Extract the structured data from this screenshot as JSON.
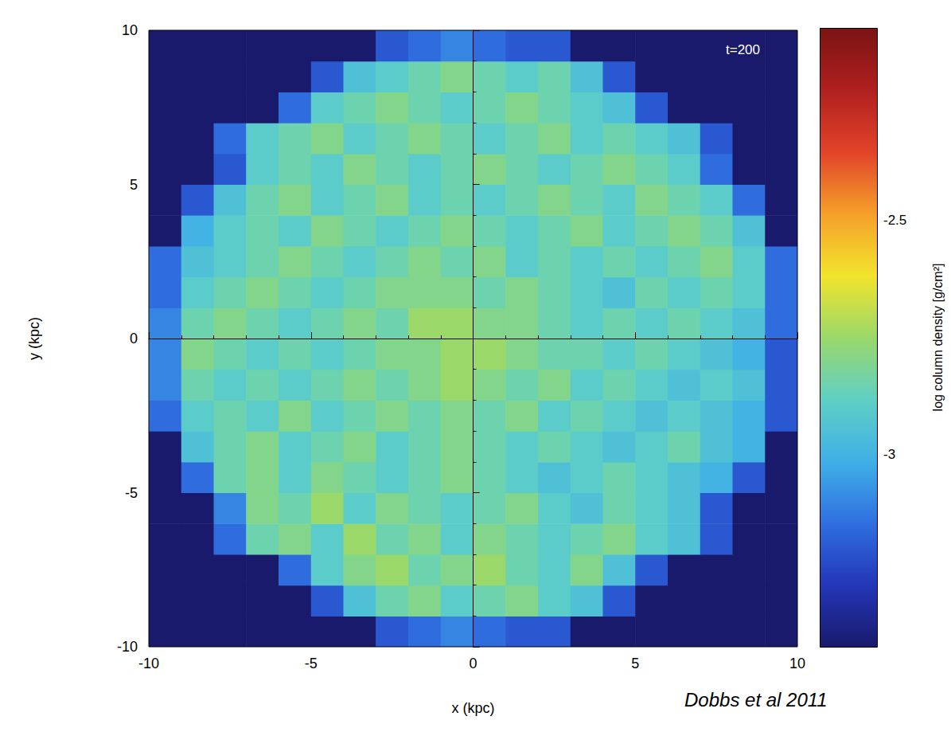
{
  "chart_data": {
    "type": "heatmap",
    "x_label": "x (kpc)",
    "y_label": "y (kpc)",
    "xlim": [
      -10,
      10
    ],
    "ylim": [
      -10,
      10
    ],
    "xticks": [
      -10,
      -5,
      0,
      5,
      10
    ],
    "yticks": [
      -10,
      -5,
      0,
      5,
      10
    ],
    "x_bins": [
      -10,
      -9,
      -8,
      -7,
      -6,
      -5,
      -4,
      -3,
      -2,
      -1,
      0,
      1,
      2,
      3,
      4,
      5,
      6,
      7,
      8,
      9,
      10
    ],
    "y_bins": [
      -10,
      -9,
      -8,
      -7,
      -6,
      -5,
      -4,
      -3,
      -2,
      -1,
      0,
      1,
      2,
      3,
      4,
      5,
      6,
      7,
      8,
      9,
      10
    ],
    "cells": [
      [
        -3.41,
        -3.41,
        -3.41,
        -3.41,
        -3.41,
        -3.41,
        -3.41,
        -3.2,
        -3.15,
        -3.1,
        -3.15,
        -3.2,
        -3.2,
        -3.41,
        -3.41,
        -3.41,
        -3.41,
        -3.41,
        -3.41,
        -3.41
      ],
      [
        -3.41,
        -3.41,
        -3.41,
        -3.41,
        -3.41,
        -3.2,
        -2.95,
        -2.85,
        -2.8,
        -2.9,
        -2.85,
        -2.8,
        -2.9,
        -2.95,
        -3.2,
        -3.41,
        -3.41,
        -3.41,
        -3.41,
        -3.41
      ],
      [
        -3.41,
        -3.41,
        -3.41,
        -3.41,
        -3.15,
        -2.9,
        -2.8,
        -2.75,
        -2.85,
        -2.8,
        -2.75,
        -2.85,
        -2.9,
        -2.8,
        -2.95,
        -3.2,
        -3.41,
        -3.41,
        -3.41,
        -3.41
      ],
      [
        -3.41,
        -3.41,
        -3.15,
        -2.85,
        -2.8,
        -2.9,
        -2.75,
        -2.85,
        -2.8,
        -2.9,
        -2.8,
        -2.85,
        -2.9,
        -2.85,
        -2.8,
        -2.9,
        -2.95,
        -3.2,
        -3.41,
        -3.41
      ],
      [
        -3.41,
        -3.41,
        -3.1,
        -2.8,
        -2.85,
        -2.75,
        -2.9,
        -2.8,
        -2.85,
        -2.9,
        -2.85,
        -2.8,
        -2.9,
        -2.95,
        -2.85,
        -2.9,
        -2.95,
        -3.2,
        -3.41,
        -3.41
      ],
      [
        -3.41,
        -3.15,
        -2.85,
        -2.8,
        -2.9,
        -2.8,
        -2.85,
        -2.9,
        -2.85,
        -2.8,
        -2.85,
        -2.9,
        -2.95,
        -2.9,
        -2.85,
        -2.9,
        -2.95,
        -3.0,
        -3.2,
        -3.41
      ],
      [
        -3.41,
        -2.95,
        -2.85,
        -2.8,
        -2.9,
        -2.85,
        -2.8,
        -2.9,
        -2.85,
        -2.8,
        -2.85,
        -2.9,
        -2.85,
        -2.9,
        -2.95,
        -2.9,
        -2.85,
        -2.95,
        -3.0,
        -3.41
      ],
      [
        -3.15,
        -2.9,
        -2.85,
        -2.9,
        -2.8,
        -2.9,
        -2.85,
        -2.8,
        -2.85,
        -2.8,
        -2.85,
        -2.8,
        -2.9,
        -2.85,
        -2.9,
        -2.95,
        -2.9,
        -2.95,
        -3.0,
        -3.2
      ],
      [
        -3.1,
        -2.85,
        -2.9,
        -2.85,
        -2.9,
        -2.85,
        -2.8,
        -2.85,
        -2.8,
        -2.75,
        -2.8,
        -2.85,
        -2.8,
        -2.9,
        -2.85,
        -2.9,
        -2.95,
        -2.9,
        -2.95,
        -3.2
      ],
      [
        -3.1,
        -2.8,
        -2.85,
        -2.9,
        -2.85,
        -2.9,
        -2.85,
        -2.8,
        -2.8,
        -2.75,
        -2.75,
        -2.8,
        -2.85,
        -2.85,
        -2.9,
        -2.85,
        -2.9,
        -2.95,
        -3.0,
        -3.2
      ],
      [
        -3.1,
        -2.85,
        -2.8,
        -2.85,
        -2.9,
        -2.85,
        -2.8,
        -2.85,
        -2.75,
        -2.75,
        -2.8,
        -2.8,
        -2.85,
        -2.9,
        -2.85,
        -2.9,
        -2.85,
        -2.9,
        -2.95,
        -3.15
      ],
      [
        -3.15,
        -2.9,
        -2.85,
        -2.8,
        -2.85,
        -2.9,
        -2.85,
        -2.8,
        -2.8,
        -2.8,
        -2.85,
        -2.8,
        -2.85,
        -2.9,
        -2.95,
        -2.85,
        -2.9,
        -2.85,
        -2.9,
        -3.15
      ],
      [
        -3.15,
        -2.95,
        -2.9,
        -2.85,
        -2.8,
        -2.85,
        -2.9,
        -2.85,
        -2.8,
        -2.85,
        -2.8,
        -2.9,
        -2.85,
        -2.9,
        -2.85,
        -2.9,
        -2.85,
        -2.8,
        -2.9,
        -3.15
      ],
      [
        -3.41,
        -3.0,
        -2.9,
        -2.85,
        -2.9,
        -2.8,
        -2.85,
        -2.9,
        -2.85,
        -2.8,
        -2.85,
        -2.9,
        -2.85,
        -2.8,
        -2.9,
        -2.85,
        -2.8,
        -2.85,
        -2.95,
        -3.41
      ],
      [
        -3.41,
        -3.2,
        -2.95,
        -2.85,
        -2.8,
        -2.9,
        -2.85,
        -2.8,
        -2.9,
        -2.85,
        -2.9,
        -2.85,
        -2.8,
        -2.85,
        -2.9,
        -2.8,
        -2.85,
        -2.9,
        -3.15,
        -3.41
      ],
      [
        -3.41,
        -3.41,
        -3.2,
        -2.9,
        -2.85,
        -2.9,
        -2.8,
        -2.85,
        -2.9,
        -2.85,
        -2.8,
        -2.85,
        -2.9,
        -2.85,
        -2.8,
        -2.85,
        -2.9,
        -3.15,
        -3.41,
        -3.41
      ],
      [
        -3.41,
        -3.41,
        -3.15,
        -2.9,
        -2.85,
        -2.8,
        -2.9,
        -2.85,
        -2.8,
        -2.85,
        -2.9,
        -2.85,
        -2.8,
        -2.9,
        -2.85,
        -2.9,
        -2.95,
        -3.2,
        -3.41,
        -3.41
      ],
      [
        -3.41,
        -3.41,
        -3.41,
        -3.41,
        -3.15,
        -2.9,
        -2.85,
        -2.8,
        -2.85,
        -2.9,
        -2.85,
        -2.8,
        -2.85,
        -2.9,
        -2.95,
        -3.2,
        -3.41,
        -3.41,
        -3.41,
        -3.41
      ],
      [
        -3.41,
        -3.41,
        -3.41,
        -3.41,
        -3.41,
        -3.2,
        -2.95,
        -2.9,
        -2.85,
        -2.8,
        -2.85,
        -2.9,
        -2.85,
        -2.95,
        -3.2,
        -3.41,
        -3.41,
        -3.41,
        -3.41,
        -3.41
      ],
      [
        -3.41,
        -3.41,
        -3.41,
        -3.41,
        -3.41,
        -3.41,
        -3.41,
        -3.2,
        -3.15,
        -3.1,
        -3.15,
        -3.2,
        -3.2,
        -3.41,
        -3.41,
        -3.41,
        -3.41,
        -3.41,
        -3.41,
        -3.41
      ]
    ],
    "color_range": [
      -3.41,
      -2.09
    ],
    "color_ticks": [
      -3,
      -2.5
    ],
    "color_label": "log column density [g/cm²]",
    "annotations": [
      "t=200",
      "Dobbs et al 2011"
    ]
  }
}
